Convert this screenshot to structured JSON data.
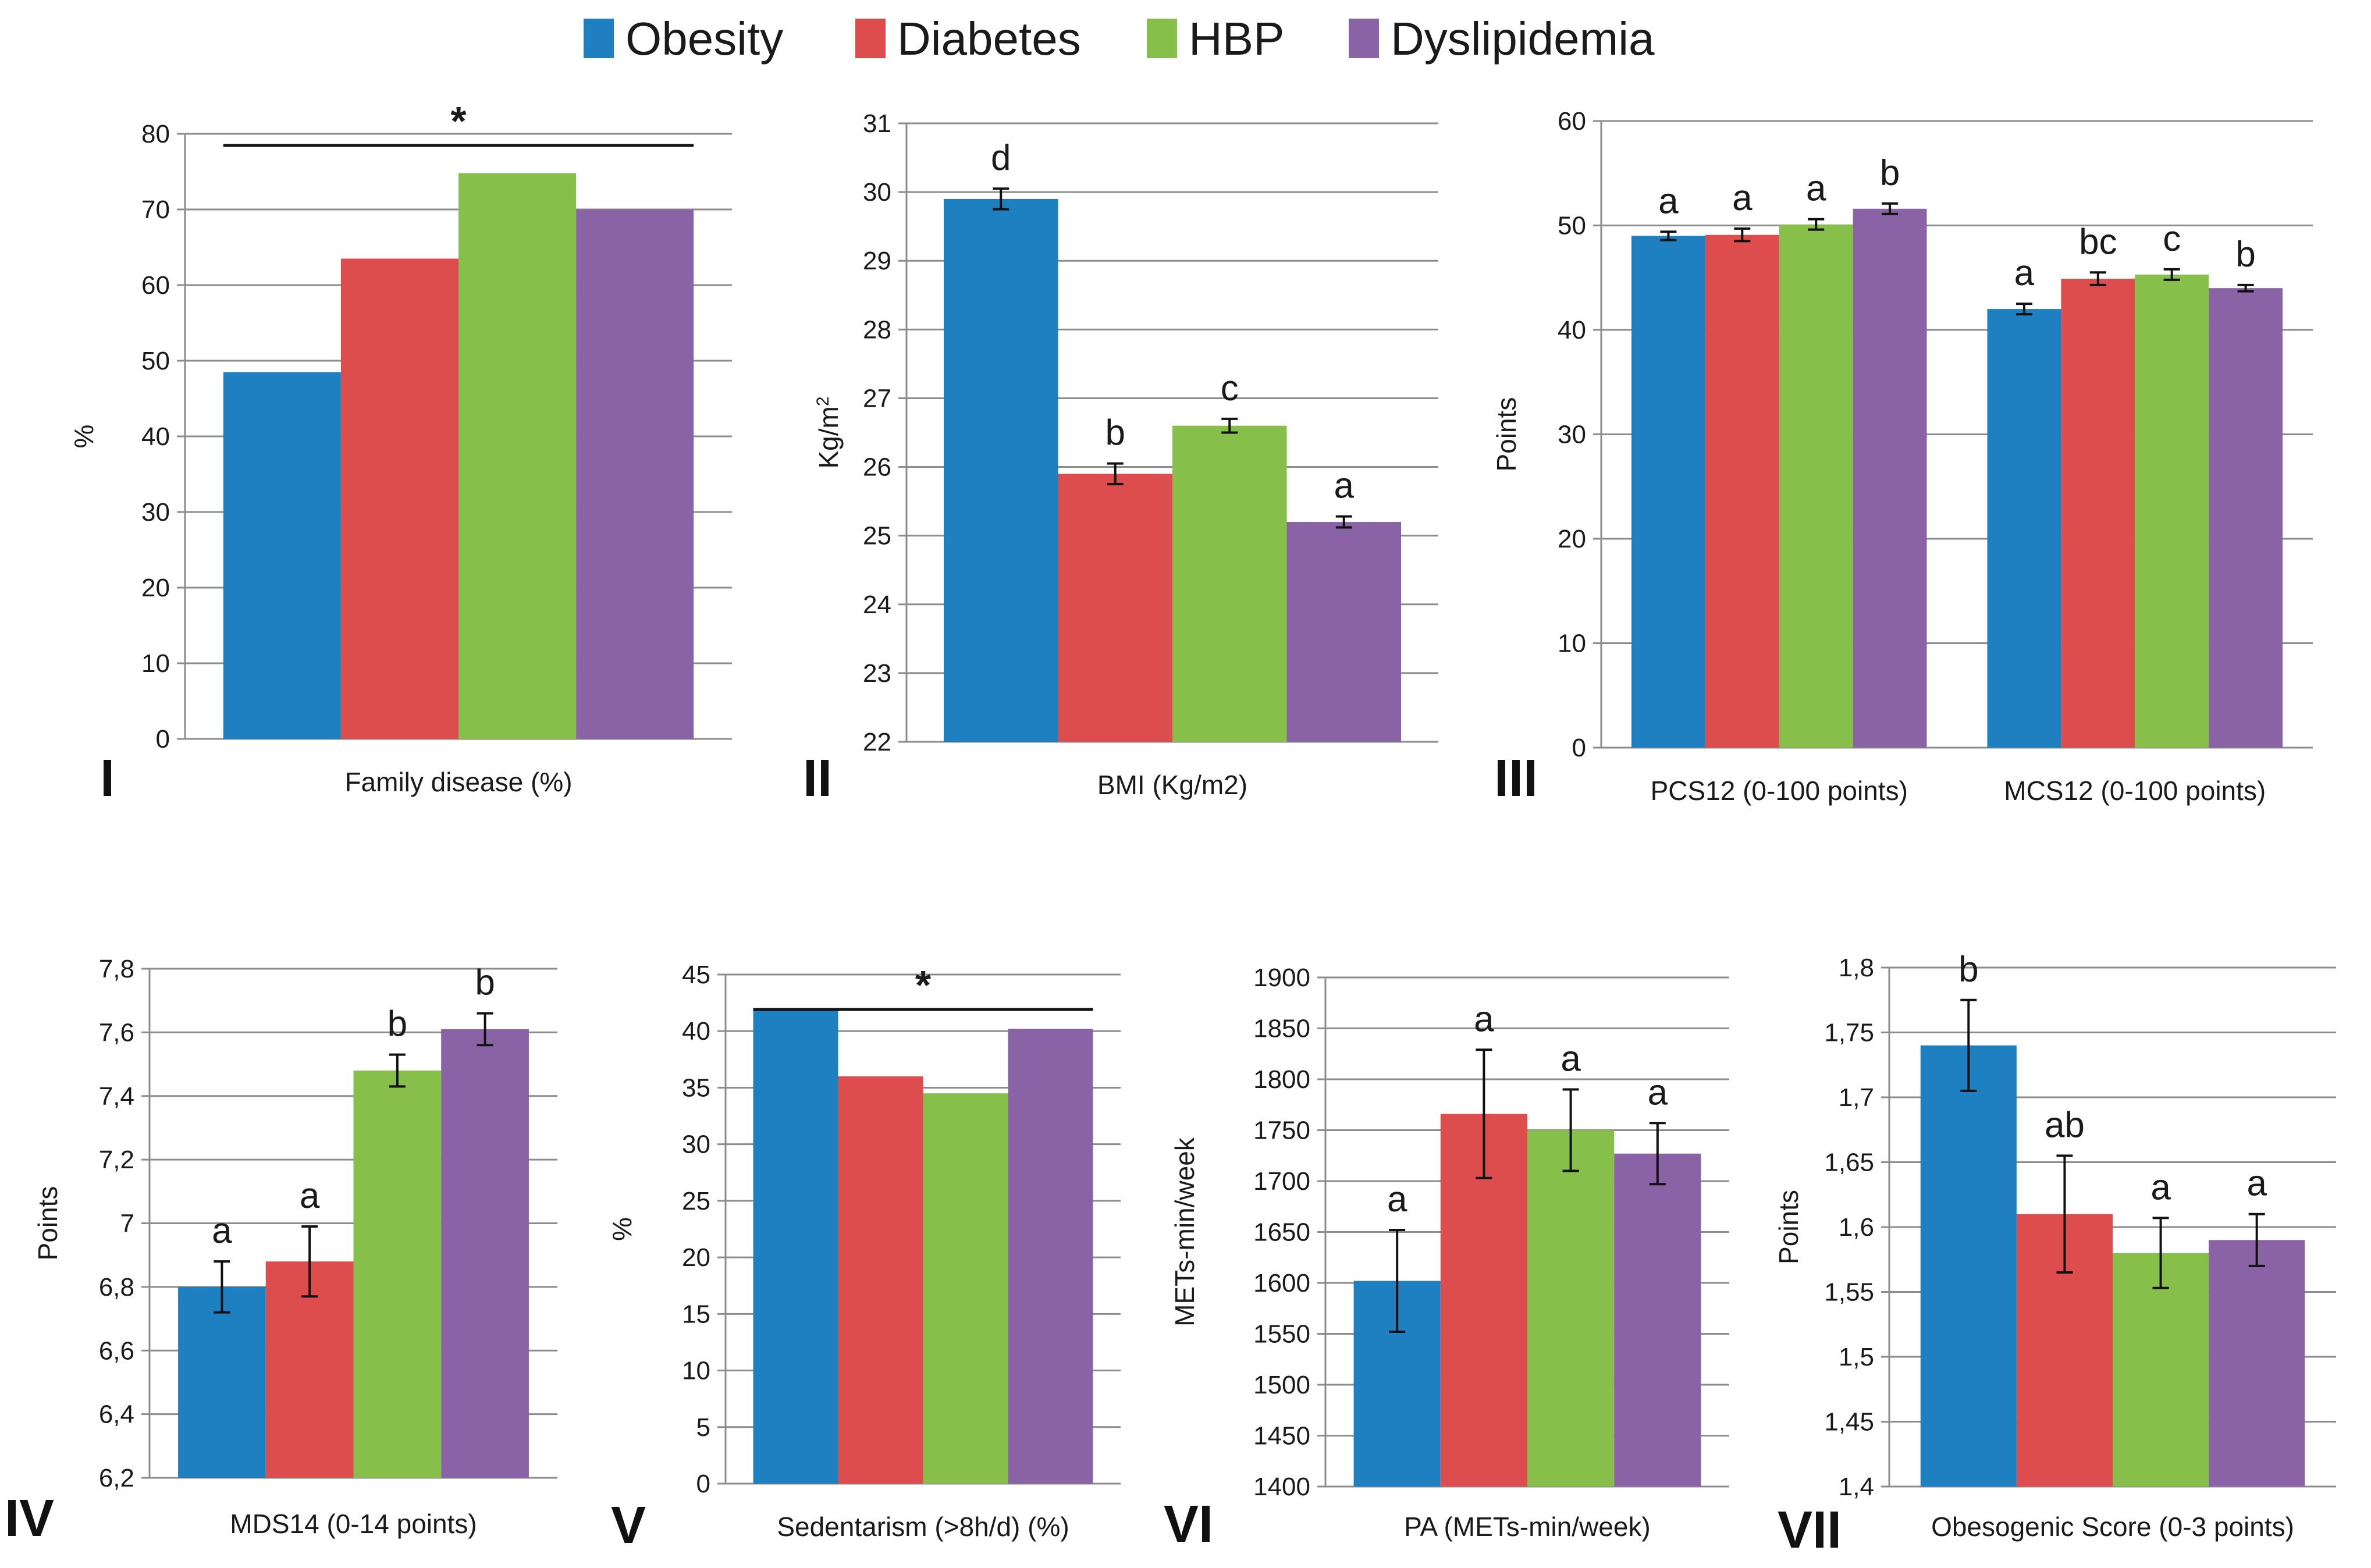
{
  "legend": [
    {
      "name": "Obesity",
      "color": "#1F80C1"
    },
    {
      "name": "Diabetes",
      "color": "#DD4D4D"
    },
    {
      "name": "HBP",
      "color": "#86BF4A"
    },
    {
      "name": "Dyslipidemia",
      "color": "#8A63A6"
    }
  ],
  "chart_data": [
    {
      "id": "I",
      "panel_label": "I",
      "type": "bar",
      "categories": [
        "Family disease (%)"
      ],
      "ylabel": "%",
      "ylim": [
        0,
        80
      ],
      "yticks": [
        "0",
        "10",
        "20",
        "30",
        "40",
        "50",
        "60",
        "70",
        "80"
      ],
      "series": [
        {
          "name": "Obesity",
          "values": [
            48.5
          ]
        },
        {
          "name": "Diabetes",
          "values": [
            63.5
          ]
        },
        {
          "name": "HBP",
          "values": [
            74.8
          ]
        },
        {
          "name": "Dyslipidemia",
          "values": [
            70
          ]
        }
      ],
      "significance": "*"
    },
    {
      "id": "II",
      "panel_label": "II",
      "type": "bar",
      "categories": [
        "BMI (Kg/m2)"
      ],
      "ylabel": "Kg/m",
      "ylabel_sup": "2",
      "ylim": [
        22,
        31
      ],
      "yticks": [
        "22",
        "23",
        "24",
        "25",
        "26",
        "27",
        "28",
        "29",
        "30",
        "31"
      ],
      "series": [
        {
          "name": "Obesity",
          "values": [
            29.9
          ],
          "errors": [
            0.15
          ],
          "letters": [
            "d"
          ]
        },
        {
          "name": "Diabetes",
          "values": [
            25.9
          ],
          "errors": [
            0.15
          ],
          "letters": [
            "b"
          ]
        },
        {
          "name": "HBP",
          "values": [
            26.6
          ],
          "errors": [
            0.1
          ],
          "letters": [
            "c"
          ]
        },
        {
          "name": "Dyslipidemia",
          "values": [
            25.2
          ],
          "errors": [
            0.08
          ],
          "letters": [
            "a"
          ]
        }
      ]
    },
    {
      "id": "III",
      "panel_label": "III",
      "type": "bar",
      "categories": [
        "PCS12 (0-100 points)",
        "MCS12 (0-100 points)"
      ],
      "ylabel": "Points",
      "ylim": [
        0,
        60
      ],
      "yticks": [
        "0",
        "10",
        "20",
        "30",
        "40",
        "50",
        "60"
      ],
      "series": [
        {
          "name": "Obesity",
          "values": [
            49,
            42
          ],
          "errors": [
            0.4,
            0.5
          ],
          "letters": [
            "a",
            "a"
          ]
        },
        {
          "name": "Diabetes",
          "values": [
            49.1,
            44.9
          ],
          "errors": [
            0.6,
            0.6
          ],
          "letters": [
            "a",
            "bc"
          ]
        },
        {
          "name": "HBP",
          "values": [
            50.1,
            45.3
          ],
          "errors": [
            0.5,
            0.5
          ],
          "letters": [
            "a",
            "c"
          ]
        },
        {
          "name": "Dyslipidemia",
          "values": [
            51.6,
            44
          ],
          "errors": [
            0.5,
            0.3
          ],
          "letters": [
            "b",
            "b"
          ]
        }
      ]
    },
    {
      "id": "IV",
      "panel_label": "IV",
      "type": "bar",
      "categories": [
        "MDS14 (0-14 points)"
      ],
      "ylabel": "Points",
      "ylim": [
        6.2,
        7.8
      ],
      "yticks": [
        "6,2",
        "6,4",
        "6,6",
        "6,8",
        "7",
        "7,2",
        "7,4",
        "7,6",
        "7,8"
      ],
      "series": [
        {
          "name": "Obesity",
          "values": [
            6.8
          ],
          "errors": [
            0.08
          ],
          "letters": [
            "a"
          ]
        },
        {
          "name": "Diabetes",
          "values": [
            6.88
          ],
          "errors": [
            0.11
          ],
          "letters": [
            "a"
          ]
        },
        {
          "name": "HBP",
          "values": [
            7.48
          ],
          "errors": [
            0.05
          ],
          "letters": [
            "b"
          ]
        },
        {
          "name": "Dyslipidemia",
          "values": [
            7.61
          ],
          "errors": [
            0.05
          ],
          "letters": [
            "b"
          ]
        }
      ]
    },
    {
      "id": "V",
      "panel_label": "V",
      "type": "bar",
      "categories": [
        "Sedentarism (>8h/d) (%)"
      ],
      "ylabel": "%",
      "ylim": [
        0,
        45
      ],
      "yticks": [
        "0",
        "5",
        "10",
        "15",
        "20",
        "25",
        "30",
        "35",
        "40",
        "45"
      ],
      "series": [
        {
          "name": "Obesity",
          "values": [
            41.8
          ]
        },
        {
          "name": "Diabetes",
          "values": [
            36
          ]
        },
        {
          "name": "HBP",
          "values": [
            34.5
          ]
        },
        {
          "name": "Dyslipidemia",
          "values": [
            40.2
          ]
        }
      ],
      "significance": "*"
    },
    {
      "id": "VI",
      "panel_label": "VI",
      "type": "bar",
      "categories": [
        "PA (METs-min/week)"
      ],
      "ylabel": "METs-min/week",
      "ylim": [
        1400,
        1900
      ],
      "yticks": [
        "1400",
        "1450",
        "1500",
        "1550",
        "1600",
        "1650",
        "1700",
        "1750",
        "1800",
        "1850",
        "1900"
      ],
      "series": [
        {
          "name": "Obesity",
          "values": [
            1602
          ],
          "errors": [
            50
          ],
          "letters": [
            "a"
          ]
        },
        {
          "name": "Diabetes",
          "values": [
            1766
          ],
          "errors": [
            63
          ],
          "letters": [
            "a"
          ]
        },
        {
          "name": "HBP",
          "values": [
            1750
          ],
          "errors": [
            40
          ],
          "letters": [
            "a"
          ]
        },
        {
          "name": "Dyslipidemia",
          "values": [
            1727
          ],
          "errors": [
            30
          ],
          "letters": [
            "a"
          ]
        }
      ]
    },
    {
      "id": "VII",
      "panel_label": "VII",
      "type": "bar",
      "categories": [
        "Obesogenic Score (0-3 points)"
      ],
      "ylabel": "Points",
      "ylim": [
        1.4,
        1.8
      ],
      "yticks": [
        "1,4",
        "1,45",
        "1,5",
        "1,55",
        "1,6",
        "1,65",
        "1,7",
        "1,75",
        "1,8"
      ],
      "series": [
        {
          "name": "Obesity",
          "values": [
            1.74
          ],
          "errors": [
            0.035
          ],
          "letters": [
            "b"
          ]
        },
        {
          "name": "Diabetes",
          "values": [
            1.61
          ],
          "errors": [
            0.045
          ],
          "letters": [
            "ab"
          ]
        },
        {
          "name": "HBP",
          "values": [
            1.58
          ],
          "errors": [
            0.027
          ],
          "letters": [
            "a"
          ]
        },
        {
          "name": "Dyslipidemia",
          "values": [
            1.59
          ],
          "errors": [
            0.02
          ],
          "letters": [
            "a"
          ]
        }
      ]
    }
  ]
}
